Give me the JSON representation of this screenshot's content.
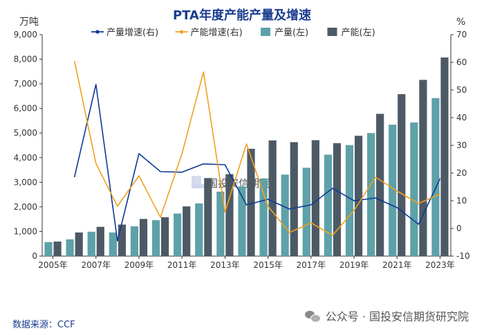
{
  "chart_data": {
    "type": "bar+line",
    "title": "PTA年度产能产量及增速",
    "left_axis_label": "万吨",
    "right_axis_label": "%",
    "left_ylim": [
      0,
      9000
    ],
    "left_ticks": [
      "0",
      "1,000",
      "2,000",
      "3,000",
      "4,000",
      "5,000",
      "6,000",
      "7,000",
      "8,000",
      "9,000"
    ],
    "left_tick_values": [
      0,
      1000,
      2000,
      3000,
      4000,
      5000,
      6000,
      7000,
      8000,
      9000
    ],
    "right_ylim": [
      -10,
      70
    ],
    "right_ticks": [
      "-10",
      "0",
      "10",
      "20",
      "30",
      "40",
      "50",
      "60",
      "70"
    ],
    "right_tick_values": [
      -10,
      0,
      10,
      20,
      30,
      40,
      50,
      60,
      70
    ],
    "years": [
      2005,
      2006,
      2007,
      2008,
      2009,
      2010,
      2011,
      2012,
      2013,
      2014,
      2015,
      2016,
      2017,
      2018,
      2019,
      2020,
      2021,
      2022,
      2023
    ],
    "x_tick_labels": [
      "2005年",
      "2007年",
      "2009年",
      "2011年",
      "2013年",
      "2015年",
      "2017年",
      "2019年",
      "2021年",
      "2023年"
    ],
    "x_tick_years": [
      2005,
      2007,
      2009,
      2011,
      2013,
      2015,
      2017,
      2019,
      2021,
      2023
    ],
    "series": [
      {
        "name": "产量增速(右)",
        "kind": "line",
        "axis": "right",
        "color": "#0d3a94",
        "values": [
          null,
          18.5,
          52,
          -4.5,
          27,
          20.5,
          20.3,
          23.3,
          23,
          8.5,
          10.5,
          7,
          8.5,
          14.5,
          10,
          11,
          7.5,
          1.5,
          18
        ]
      },
      {
        "name": "产能增速(右)",
        "kind": "line",
        "axis": "right",
        "color": "#f0a11e",
        "values": [
          null,
          60.5,
          23.5,
          8,
          19,
          4,
          27,
          56.5,
          6,
          30.5,
          8,
          -1.5,
          2,
          -2.5,
          6.5,
          18.5,
          13.5,
          9,
          12.5
        ]
      },
      {
        "name": "产量(左)",
        "kind": "bar",
        "axis": "left",
        "color": "#5ea1a8",
        "values": [
          570,
          680,
          990,
          960,
          1210,
          1460,
          1730,
          2140,
          2620,
          2830,
          3150,
          3310,
          3590,
          4120,
          4510,
          5000,
          5340,
          5430,
          6420
        ]
      },
      {
        "name": "产能(左)",
        "kind": "bar",
        "axis": "left",
        "color": "#4d5a66",
        "values": [
          590,
          960,
          1190,
          1280,
          1510,
          1580,
          2020,
          3170,
          3330,
          4360,
          4700,
          4630,
          4710,
          4590,
          4890,
          5780,
          6580,
          7160,
          8070
        ]
      }
    ]
  },
  "legend": {
    "items": [
      {
        "label": "产量增速(右)",
        "style": "line",
        "color": "#0d3a94"
      },
      {
        "label": "产能增速(右)",
        "style": "line",
        "color": "#f0a11e"
      },
      {
        "label": "产量(左)",
        "style": "box",
        "color": "#5ea1a8"
      },
      {
        "label": "产能(左)",
        "style": "box",
        "color": "#4d5a66"
      }
    ]
  },
  "watermark_center": "国投安信期货",
  "source": "数据来源：CCF",
  "footer_watermark": "公众号 · 国投安信期货研究院"
}
